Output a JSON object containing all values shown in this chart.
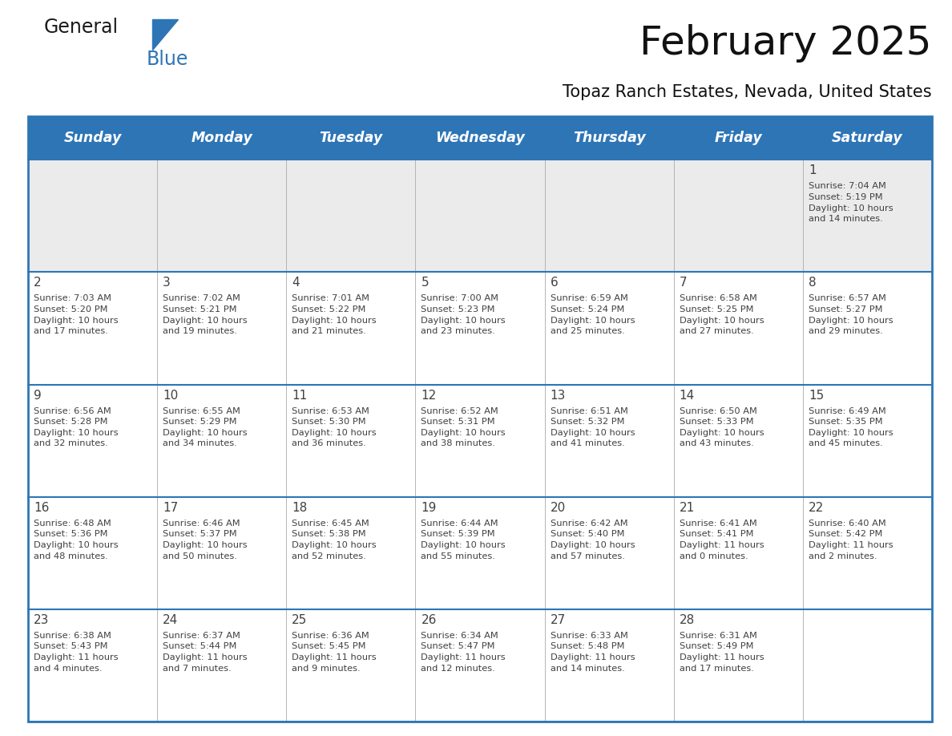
{
  "title": "February 2025",
  "subtitle": "Topaz Ranch Estates, Nevada, United States",
  "header_bg": "#2E75B6",
  "header_text_color": "#FFFFFF",
  "header_days": [
    "Sunday",
    "Monday",
    "Tuesday",
    "Wednesday",
    "Thursday",
    "Friday",
    "Saturday"
  ],
  "row0_bg": "#EBEBEB",
  "row_bg": "#FFFFFF",
  "border_color": "#2E75B6",
  "divider_color": "#AAAAAA",
  "text_color": "#404040",
  "day_num_color": "#404040",
  "calendar_data": [
    [
      {
        "day": null,
        "info": null
      },
      {
        "day": null,
        "info": null
      },
      {
        "day": null,
        "info": null
      },
      {
        "day": null,
        "info": null
      },
      {
        "day": null,
        "info": null
      },
      {
        "day": null,
        "info": null
      },
      {
        "day": 1,
        "info": "Sunrise: 7:04 AM\nSunset: 5:19 PM\nDaylight: 10 hours\nand 14 minutes."
      }
    ],
    [
      {
        "day": 2,
        "info": "Sunrise: 7:03 AM\nSunset: 5:20 PM\nDaylight: 10 hours\nand 17 minutes."
      },
      {
        "day": 3,
        "info": "Sunrise: 7:02 AM\nSunset: 5:21 PM\nDaylight: 10 hours\nand 19 minutes."
      },
      {
        "day": 4,
        "info": "Sunrise: 7:01 AM\nSunset: 5:22 PM\nDaylight: 10 hours\nand 21 minutes."
      },
      {
        "day": 5,
        "info": "Sunrise: 7:00 AM\nSunset: 5:23 PM\nDaylight: 10 hours\nand 23 minutes."
      },
      {
        "day": 6,
        "info": "Sunrise: 6:59 AM\nSunset: 5:24 PM\nDaylight: 10 hours\nand 25 minutes."
      },
      {
        "day": 7,
        "info": "Sunrise: 6:58 AM\nSunset: 5:25 PM\nDaylight: 10 hours\nand 27 minutes."
      },
      {
        "day": 8,
        "info": "Sunrise: 6:57 AM\nSunset: 5:27 PM\nDaylight: 10 hours\nand 29 minutes."
      }
    ],
    [
      {
        "day": 9,
        "info": "Sunrise: 6:56 AM\nSunset: 5:28 PM\nDaylight: 10 hours\nand 32 minutes."
      },
      {
        "day": 10,
        "info": "Sunrise: 6:55 AM\nSunset: 5:29 PM\nDaylight: 10 hours\nand 34 minutes."
      },
      {
        "day": 11,
        "info": "Sunrise: 6:53 AM\nSunset: 5:30 PM\nDaylight: 10 hours\nand 36 minutes."
      },
      {
        "day": 12,
        "info": "Sunrise: 6:52 AM\nSunset: 5:31 PM\nDaylight: 10 hours\nand 38 minutes."
      },
      {
        "day": 13,
        "info": "Sunrise: 6:51 AM\nSunset: 5:32 PM\nDaylight: 10 hours\nand 41 minutes."
      },
      {
        "day": 14,
        "info": "Sunrise: 6:50 AM\nSunset: 5:33 PM\nDaylight: 10 hours\nand 43 minutes."
      },
      {
        "day": 15,
        "info": "Sunrise: 6:49 AM\nSunset: 5:35 PM\nDaylight: 10 hours\nand 45 minutes."
      }
    ],
    [
      {
        "day": 16,
        "info": "Sunrise: 6:48 AM\nSunset: 5:36 PM\nDaylight: 10 hours\nand 48 minutes."
      },
      {
        "day": 17,
        "info": "Sunrise: 6:46 AM\nSunset: 5:37 PM\nDaylight: 10 hours\nand 50 minutes."
      },
      {
        "day": 18,
        "info": "Sunrise: 6:45 AM\nSunset: 5:38 PM\nDaylight: 10 hours\nand 52 minutes."
      },
      {
        "day": 19,
        "info": "Sunrise: 6:44 AM\nSunset: 5:39 PM\nDaylight: 10 hours\nand 55 minutes."
      },
      {
        "day": 20,
        "info": "Sunrise: 6:42 AM\nSunset: 5:40 PM\nDaylight: 10 hours\nand 57 minutes."
      },
      {
        "day": 21,
        "info": "Sunrise: 6:41 AM\nSunset: 5:41 PM\nDaylight: 11 hours\nand 0 minutes."
      },
      {
        "day": 22,
        "info": "Sunrise: 6:40 AM\nSunset: 5:42 PM\nDaylight: 11 hours\nand 2 minutes."
      }
    ],
    [
      {
        "day": 23,
        "info": "Sunrise: 6:38 AM\nSunset: 5:43 PM\nDaylight: 11 hours\nand 4 minutes."
      },
      {
        "day": 24,
        "info": "Sunrise: 6:37 AM\nSunset: 5:44 PM\nDaylight: 11 hours\nand 7 minutes."
      },
      {
        "day": 25,
        "info": "Sunrise: 6:36 AM\nSunset: 5:45 PM\nDaylight: 11 hours\nand 9 minutes."
      },
      {
        "day": 26,
        "info": "Sunrise: 6:34 AM\nSunset: 5:47 PM\nDaylight: 11 hours\nand 12 minutes."
      },
      {
        "day": 27,
        "info": "Sunrise: 6:33 AM\nSunset: 5:48 PM\nDaylight: 11 hours\nand 14 minutes."
      },
      {
        "day": 28,
        "info": "Sunrise: 6:31 AM\nSunset: 5:49 PM\nDaylight: 11 hours\nand 17 minutes."
      },
      {
        "day": null,
        "info": null
      }
    ]
  ],
  "logo_general_color": "#1a1a1a",
  "logo_blue_color": "#2E75B6",
  "fig_width": 11.88,
  "fig_height": 9.18,
  "dpi": 100
}
